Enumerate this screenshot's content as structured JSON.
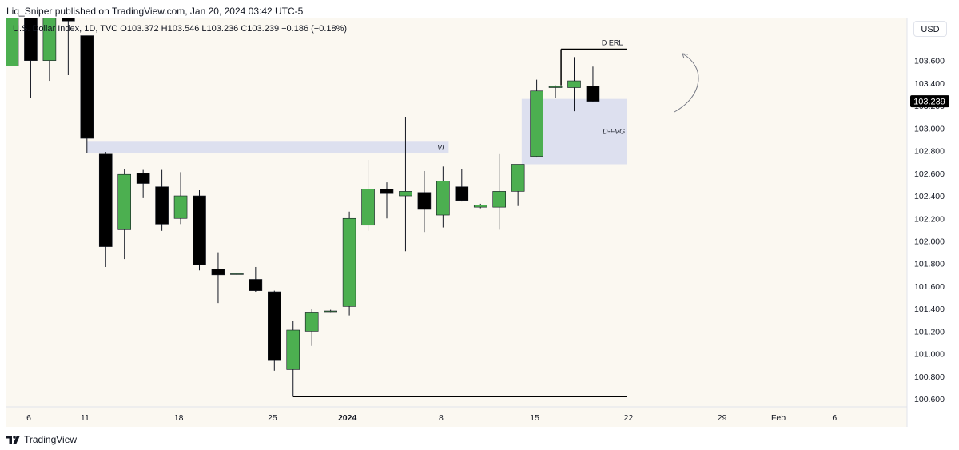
{
  "header": {
    "text": "Liq_Sniper published on TradingView.com, Jan 20, 2024 03:42 UTC-5"
  },
  "symbol_line": {
    "text": "U.S. Dollar Index, 1D, TVC  O103.372  H103.546  L103.236  C103.239  −0.186 (−0.18%)"
  },
  "currency_button": {
    "label": "USD"
  },
  "footer": {
    "brand": "TradingView"
  },
  "colors": {
    "background": "#fbf8f1",
    "bull": "#4caf50",
    "bear": "#000000",
    "zone_fill": "#dde0ef",
    "price_tag": "#000000"
  },
  "chart_data": {
    "type": "candlestick",
    "title": "",
    "xlabel": "",
    "ylabel": "",
    "ylim": [
      100.53,
      103.98
    ],
    "y_ticks": [
      "103.600",
      "103.400",
      "103.200",
      "103.000",
      "102.800",
      "102.600",
      "102.400",
      "102.200",
      "102.000",
      "101.800",
      "101.600",
      "101.400",
      "101.200",
      "101.000",
      "100.800",
      "100.600"
    ],
    "x_tick_labels": [
      {
        "label": "6",
        "index": 0,
        "bold": false
      },
      {
        "label": "11",
        "index": 3,
        "bold": false
      },
      {
        "label": "18",
        "index": 8,
        "bold": false
      },
      {
        "label": "25",
        "index": 13,
        "bold": false
      },
      {
        "label": "2024",
        "index": 17,
        "bold": true
      },
      {
        "label": "8",
        "index": 22,
        "bold": false
      },
      {
        "label": "15",
        "index": 27,
        "bold": false
      },
      {
        "label": "22",
        "index": 32,
        "bold": false
      },
      {
        "label": "29",
        "index": 37,
        "bold": false
      },
      {
        "label": "Feb",
        "index": 40,
        "bold": false
      },
      {
        "label": "6",
        "index": 43,
        "bold": false
      }
    ],
    "candles": [
      {
        "o": 103.55,
        "h": 104.05,
        "l": 103.55,
        "c": 104.05
      },
      {
        "o": 104.05,
        "h": 104.1,
        "l": 103.27,
        "c": 103.6
      },
      {
        "o": 103.6,
        "h": 104.05,
        "l": 103.42,
        "c": 104.05
      },
      {
        "o": 104.05,
        "h": 104.05,
        "l": 103.47,
        "c": 103.95
      },
      {
        "o": 103.82,
        "h": 103.82,
        "l": 102.78,
        "c": 102.91
      },
      {
        "o": 102.77,
        "h": 102.79,
        "l": 101.77,
        "c": 101.95
      },
      {
        "o": 102.1,
        "h": 102.64,
        "l": 101.84,
        "c": 102.59
      },
      {
        "o": 102.6,
        "h": 102.63,
        "l": 102.38,
        "c": 102.51
      },
      {
        "o": 102.48,
        "h": 102.63,
        "l": 102.09,
        "c": 102.15
      },
      {
        "o": 102.2,
        "h": 102.61,
        "l": 102.15,
        "c": 102.4
      },
      {
        "o": 102.4,
        "h": 102.45,
        "l": 101.74,
        "c": 101.79
      },
      {
        "o": 101.75,
        "h": 101.9,
        "l": 101.45,
        "c": 101.7
      },
      {
        "o": 101.71,
        "h": 101.72,
        "l": 101.7,
        "c": 101.71
      },
      {
        "o": 101.66,
        "h": 101.77,
        "l": 101.55,
        "c": 101.56
      },
      {
        "o": 101.55,
        "h": 101.56,
        "l": 100.85,
        "c": 100.94
      },
      {
        "o": 100.86,
        "h": 101.29,
        "l": 100.62,
        "c": 101.21
      },
      {
        "o": 101.2,
        "h": 101.4,
        "l": 101.07,
        "c": 101.37
      },
      {
        "o": 101.38,
        "h": 101.39,
        "l": 101.37,
        "c": 101.38
      },
      {
        "o": 101.42,
        "h": 102.26,
        "l": 101.34,
        "c": 102.2
      },
      {
        "o": 102.14,
        "h": 102.72,
        "l": 102.09,
        "c": 102.46
      },
      {
        "o": 102.46,
        "h": 102.52,
        "l": 102.2,
        "c": 102.42
      },
      {
        "o": 102.4,
        "h": 103.1,
        "l": 101.91,
        "c": 102.44
      },
      {
        "o": 102.43,
        "h": 102.62,
        "l": 102.08,
        "c": 102.28
      },
      {
        "o": 102.23,
        "h": 102.66,
        "l": 102.12,
        "c": 102.53
      },
      {
        "o": 102.48,
        "h": 102.64,
        "l": 102.35,
        "c": 102.36
      },
      {
        "o": 102.3,
        "h": 102.33,
        "l": 102.29,
        "c": 102.32
      },
      {
        "o": 102.3,
        "h": 102.77,
        "l": 102.1,
        "c": 102.44
      },
      {
        "o": 102.44,
        "h": 102.68,
        "l": 102.31,
        "c": 102.68
      },
      {
        "o": 102.75,
        "h": 103.43,
        "l": 102.74,
        "c": 103.33
      },
      {
        "o": 103.36,
        "h": 103.38,
        "l": 103.27,
        "c": 103.37
      },
      {
        "o": 103.36,
        "h": 103.63,
        "l": 103.15,
        "c": 103.42
      },
      {
        "o": 103.372,
        "h": 103.546,
        "l": 103.236,
        "c": 103.239
      }
    ],
    "zones": [
      {
        "label": "VI",
        "y_low": 102.78,
        "y_high": 102.88,
        "from_index": 4,
        "to_index": 23.3
      },
      {
        "label": "D-FVG",
        "y_low": 102.68,
        "y_high": 103.26,
        "from_index": 27.2,
        "to_index": 32.8
      }
    ],
    "levels": [
      {
        "label": "D ERL",
        "y": 103.7,
        "from_index": 29.3,
        "to_index": 32.8
      },
      {
        "label": "",
        "y": 100.62,
        "from_index": 15,
        "to_index": 32.8
      }
    ],
    "last_price": "103.239",
    "last_price_value": 103.239
  }
}
